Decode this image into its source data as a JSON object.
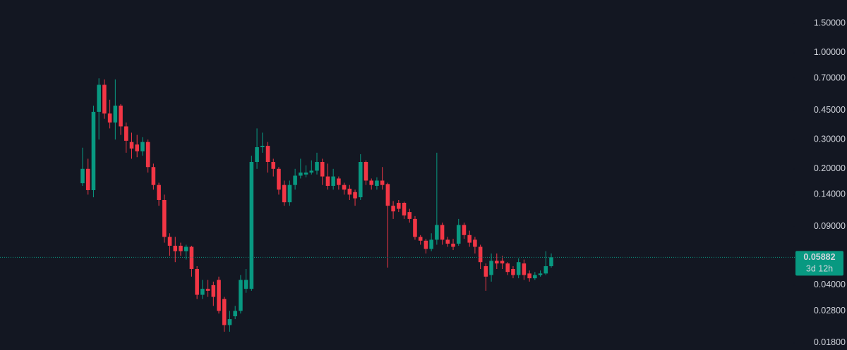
{
  "chart_data": {
    "type": "candlestick",
    "log_scale": true,
    "up_color": "#089981",
    "down_color": "#f23645",
    "ylim": [
      0.0163,
      2.07
    ],
    "yticks": [
      {
        "value": 1.5,
        "label": "1.50000"
      },
      {
        "value": 1.0,
        "label": "1.00000"
      },
      {
        "value": 0.7,
        "label": "0.70000"
      },
      {
        "value": 0.45,
        "label": "0.45000"
      },
      {
        "value": 0.3,
        "label": "0.30000"
      },
      {
        "value": 0.2,
        "label": "0.20000"
      },
      {
        "value": 0.14,
        "label": "0.14000"
      },
      {
        "value": 0.09,
        "label": "0.09000"
      },
      {
        "value": 0.04,
        "label": "0.04000"
      },
      {
        "value": 0.028,
        "label": "0.02800"
      },
      {
        "value": 0.018,
        "label": "0.01800"
      }
    ],
    "current_price": 0.05882,
    "countdown": "3d 12h",
    "open": [
      0.164,
      0.2,
      0.149,
      0.44,
      0.64,
      0.43,
      0.38,
      0.48,
      0.36,
      0.29,
      0.28,
      0.255,
      0.29,
      0.205,
      0.16,
      0.13,
      0.078,
      0.069,
      0.069,
      0.064,
      0.068,
      0.05,
      0.035,
      0.038,
      0.04,
      0.043,
      0.033,
      0.023,
      0.026,
      0.028,
      0.038,
      0.038,
      0.22,
      0.27,
      0.275,
      0.22,
      0.2,
      0.16,
      0.126,
      0.16,
      0.182,
      0.185,
      0.19,
      0.195,
      0.22,
      0.18,
      0.158,
      0.175,
      0.16,
      0.152,
      0.145,
      0.135,
      0.22,
      0.17,
      0.158,
      0.17,
      0.162,
      0.12,
      0.125,
      0.125,
      0.11,
      0.1,
      0.078,
      0.074,
      0.066,
      0.075,
      0.092,
      0.075,
      0.071,
      0.071,
      0.092,
      0.08,
      0.075,
      0.068,
      0.052,
      0.046,
      0.056,
      0.056,
      0.054,
      0.05,
      0.046,
      0.054,
      0.047,
      0.044,
      0.046,
      0.047,
      0.052
    ],
    "high": [
      0.268,
      0.23,
      0.48,
      0.7,
      0.69,
      0.52,
      0.69,
      0.49,
      0.38,
      0.33,
      0.32,
      0.31,
      0.3,
      0.215,
      0.165,
      0.14,
      0.082,
      0.078,
      0.072,
      0.07,
      0.069,
      0.052,
      0.043,
      0.043,
      0.042,
      0.045,
      0.034,
      0.028,
      0.03,
      0.046,
      0.05,
      0.24,
      0.35,
      0.33,
      0.29,
      0.23,
      0.205,
      0.17,
      0.17,
      0.2,
      0.23,
      0.21,
      0.225,
      0.25,
      0.23,
      0.215,
      0.2,
      0.18,
      0.165,
      0.16,
      0.15,
      0.245,
      0.225,
      0.175,
      0.178,
      0.205,
      0.165,
      0.128,
      0.13,
      0.127,
      0.115,
      0.104,
      0.08,
      0.076,
      0.082,
      0.25,
      0.095,
      0.078,
      0.076,
      0.1,
      0.095,
      0.085,
      0.078,
      0.07,
      0.054,
      0.062,
      0.062,
      0.06,
      0.055,
      0.052,
      0.058,
      0.057,
      0.049,
      0.048,
      0.049,
      0.064,
      0.062
    ],
    "low": [
      0.158,
      0.14,
      0.135,
      0.3,
      0.4,
      0.35,
      0.3,
      0.32,
      0.25,
      0.23,
      0.235,
      0.24,
      0.19,
      0.15,
      0.12,
      0.072,
      0.06,
      0.055,
      0.06,
      0.057,
      0.045,
      0.033,
      0.033,
      0.034,
      0.03,
      0.027,
      0.021,
      0.021,
      0.025,
      0.027,
      0.036,
      0.037,
      0.2,
      0.25,
      0.19,
      0.18,
      0.14,
      0.12,
      0.12,
      0.15,
      0.175,
      0.178,
      0.185,
      0.185,
      0.16,
      0.15,
      0.15,
      0.15,
      0.14,
      0.13,
      0.12,
      0.13,
      0.16,
      0.15,
      0.15,
      0.15,
      0.051,
      0.1,
      0.11,
      0.1,
      0.095,
      0.075,
      0.07,
      0.062,
      0.064,
      0.07,
      0.07,
      0.068,
      0.065,
      0.069,
      0.076,
      0.068,
      0.062,
      0.05,
      0.037,
      0.042,
      0.05,
      0.05,
      0.046,
      0.044,
      0.044,
      0.043,
      0.042,
      0.043,
      0.045,
      0.046,
      0.051
    ],
    "close": [
      0.2,
      0.149,
      0.44,
      0.64,
      0.43,
      0.38,
      0.48,
      0.36,
      0.295,
      0.265,
      0.255,
      0.29,
      0.205,
      0.16,
      0.13,
      0.078,
      0.069,
      0.064,
      0.064,
      0.068,
      0.05,
      0.035,
      0.038,
      0.037,
      0.034,
      0.028,
      0.023,
      0.025,
      0.028,
      0.043,
      0.043,
      0.22,
      0.27,
      0.275,
      0.22,
      0.2,
      0.15,
      0.126,
      0.16,
      0.182,
      0.19,
      0.19,
      0.195,
      0.22,
      0.18,
      0.158,
      0.18,
      0.16,
      0.15,
      0.14,
      0.133,
      0.22,
      0.17,
      0.16,
      0.17,
      0.16,
      0.12,
      0.111,
      0.115,
      0.105,
      0.1,
      0.078,
      0.074,
      0.066,
      0.075,
      0.092,
      0.075,
      0.071,
      0.068,
      0.092,
      0.08,
      0.072,
      0.068,
      0.055,
      0.045,
      0.056,
      0.054,
      0.054,
      0.048,
      0.046,
      0.055,
      0.046,
      0.044,
      0.046,
      0.047,
      0.052,
      0.05882
    ]
  }
}
